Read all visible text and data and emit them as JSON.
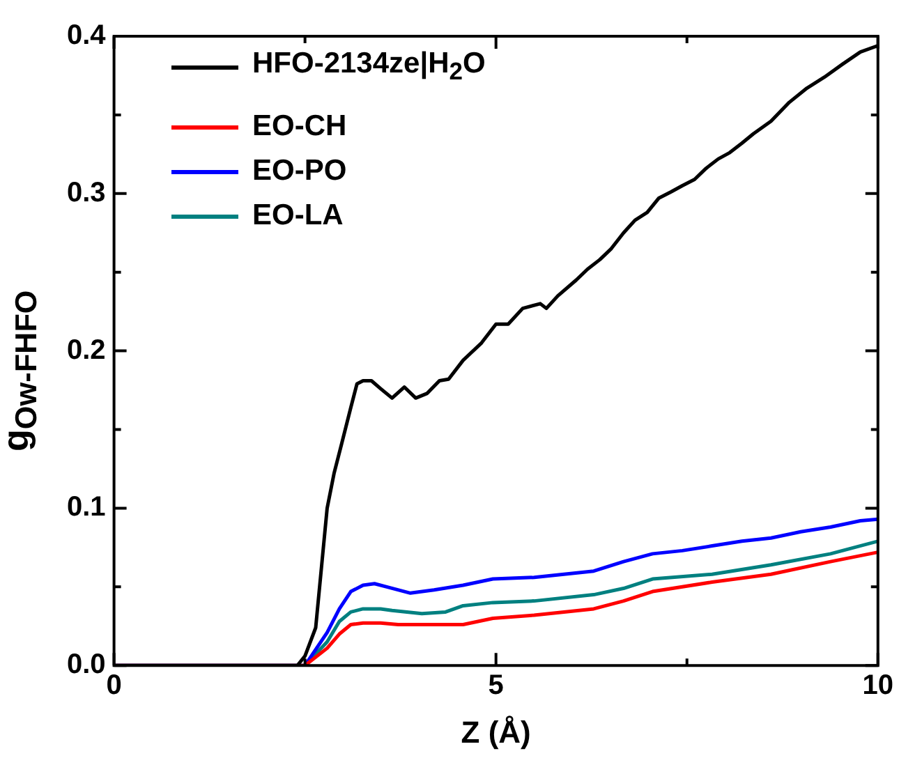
{
  "chart_data": {
    "type": "line",
    "xlabel": "Z (Å)",
    "ylabel": "g$_{Ow-FHFO}$",
    "xlim": [
      0,
      10
    ],
    "ylim": [
      0,
      0.4
    ],
    "xticks": [
      0,
      {
        "value": 2.5,
        "label": null
      },
      5,
      {
        "value": 7.5,
        "label": null
      },
      10
    ],
    "yticks": [
      {
        "value": 0,
        "label": "0.0"
      },
      {
        "value": 0.05,
        "label": null
      },
      0.1,
      {
        "value": 0.15,
        "label": null
      },
      0.2,
      {
        "value": 0.25,
        "label": null
      },
      0.3,
      {
        "value": 0.35,
        "label": null
      },
      0.4
    ],
    "grid": false,
    "legend": "top left",
    "marker": "none",
    "line_style": "solid",
    "series": [
      {
        "name": "HFO-2134ze|H$_{2}$O",
        "color": "#000000",
        "x": [
          0,
          2.4,
          2.5,
          2.64,
          2.79,
          2.88,
          2.98,
          3.1,
          3.18,
          3.26,
          3.37,
          3.49,
          3.64,
          3.8,
          3.95,
          4.1,
          4.26,
          4.38,
          4.57,
          4.81,
          5.0,
          5.16,
          5.35,
          5.58,
          5.66,
          5.81,
          6.05,
          6.2,
          6.36,
          6.51,
          6.67,
          6.82,
          6.98,
          7.13,
          7.29,
          7.44,
          7.6,
          7.75,
          7.91,
          8.06,
          8.22,
          8.37,
          8.6,
          8.84,
          9.07,
          9.3,
          9.53,
          9.77,
          10
        ],
        "values": [
          0,
          0,
          0.006,
          0.024,
          0.1,
          0.122,
          0.141,
          0.164,
          0.179,
          0.181,
          0.181,
          0.176,
          0.17,
          0.177,
          0.17,
          0.173,
          0.181,
          0.182,
          0.194,
          0.205,
          0.217,
          0.217,
          0.227,
          0.23,
          0.227,
          0.235,
          0.245,
          0.252,
          0.258,
          0.265,
          0.275,
          0.283,
          0.288,
          0.297,
          0.301,
          0.305,
          0.309,
          0.316,
          0.322,
          0.326,
          0.332,
          0.338,
          0.346,
          0.358,
          0.367,
          0.374,
          0.382,
          0.39,
          0.394
        ]
      },
      {
        "name": "EO-CH",
        "color": "#ff0000",
        "x": [
          0,
          2.5,
          2.79,
          2.95,
          3.1,
          3.26,
          3.49,
          3.72,
          4.19,
          4.57,
          4.96,
          5.5,
          6.28,
          6.67,
          7.05,
          7.83,
          8.6,
          9.38,
          10
        ],
        "values": [
          0,
          0,
          0.011,
          0.02,
          0.026,
          0.027,
          0.027,
          0.026,
          0.026,
          0.026,
          0.03,
          0.032,
          0.036,
          0.041,
          0.047,
          0.053,
          0.058,
          0.066,
          0.072
        ]
      },
      {
        "name": "EO-PO",
        "color": "#0000ff",
        "x": [
          0,
          2.5,
          2.79,
          2.95,
          3.1,
          3.26,
          3.41,
          3.57,
          3.88,
          4.19,
          4.57,
          4.96,
          5.5,
          6.28,
          6.67,
          7.05,
          7.44,
          7.83,
          8.22,
          8.6,
          8.99,
          9.38,
          9.77,
          10
        ],
        "values": [
          0,
          0,
          0.021,
          0.036,
          0.047,
          0.051,
          0.052,
          0.05,
          0.046,
          0.048,
          0.051,
          0.055,
          0.056,
          0.06,
          0.066,
          0.071,
          0.073,
          0.076,
          0.079,
          0.081,
          0.085,
          0.088,
          0.092,
          0.093
        ]
      },
      {
        "name": "EO-LA",
        "color": "#008080",
        "x": [
          0,
          2.5,
          2.79,
          2.95,
          3.1,
          3.26,
          3.49,
          3.64,
          4.03,
          4.34,
          4.57,
          4.96,
          5.5,
          6.28,
          6.67,
          7.05,
          7.83,
          8.6,
          9.38,
          10
        ],
        "values": [
          0,
          0,
          0.015,
          0.028,
          0.034,
          0.036,
          0.036,
          0.035,
          0.033,
          0.034,
          0.038,
          0.04,
          0.041,
          0.045,
          0.049,
          0.055,
          0.058,
          0.064,
          0.071,
          0.079
        ]
      }
    ]
  }
}
